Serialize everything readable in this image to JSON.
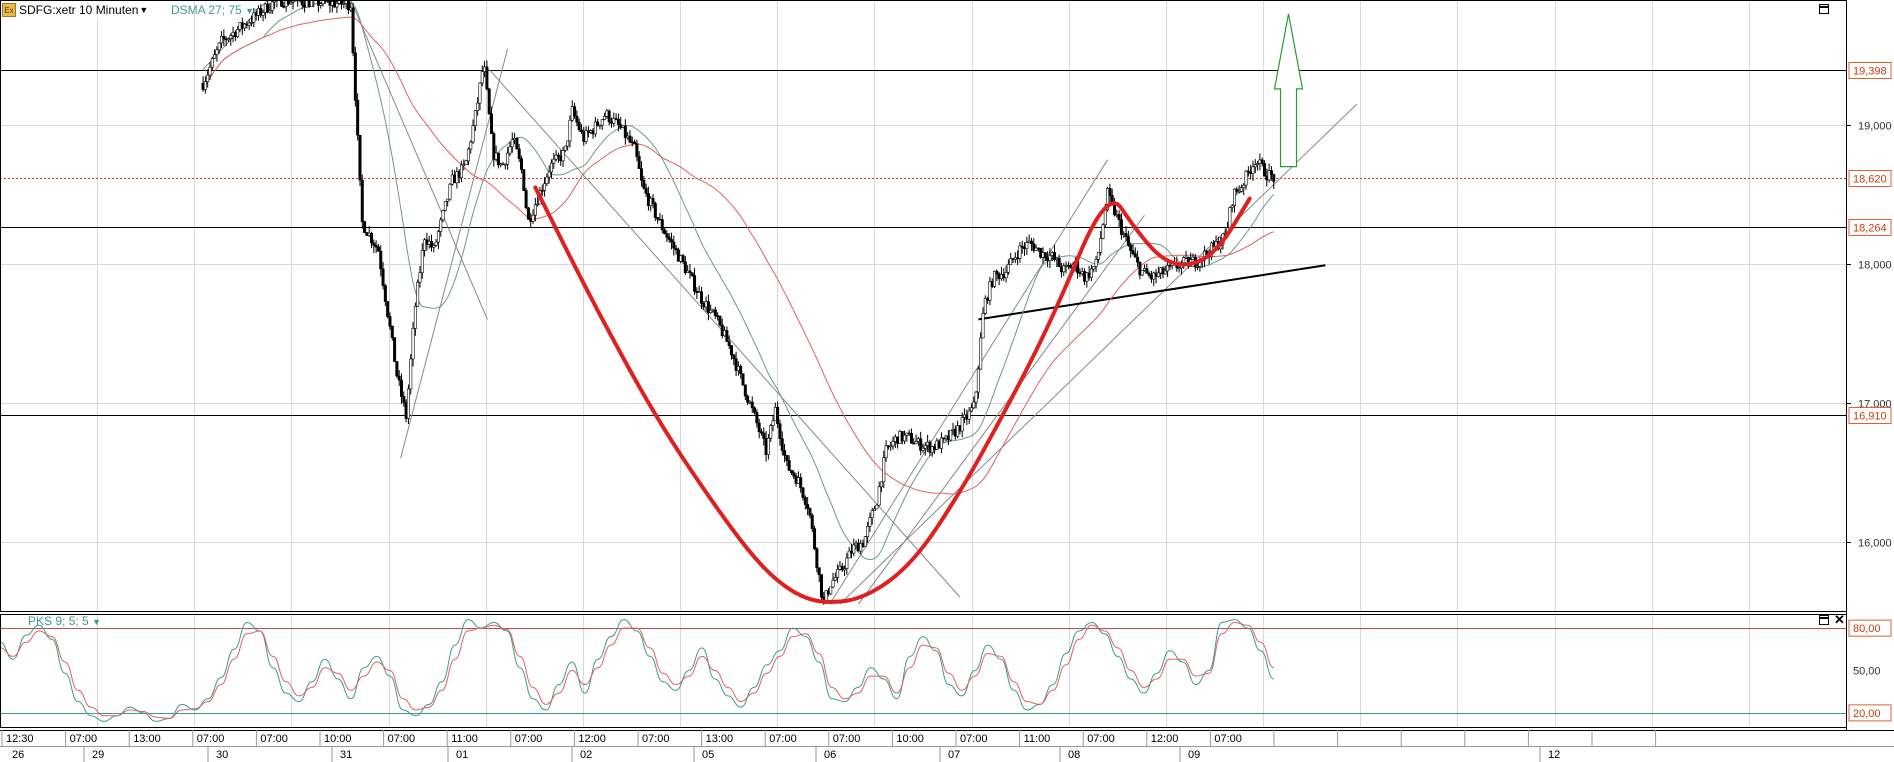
{
  "header": {
    "symbol": "SDFG:xetr 10 Minuten",
    "main_indicator": "DSMA 27; 75",
    "lower_indicator": "PKS 9; 5; 5"
  },
  "colors": {
    "candle": "#000000",
    "cup_handle": "#e02020",
    "ma_fast": "#6a9a8a",
    "ma_slow": "#e06060",
    "resistance_line": "#e03030",
    "arrow": "#2e9a2e",
    "grid": "#d8d8d8",
    "stoch_k": "#3c9c8c",
    "stoch_d": "#e06060"
  },
  "chart_data": [
    {
      "type": "candlestick",
      "title": "SDFG:xetr 10 Minuten",
      "indicator": "DSMA 27; 75",
      "ylim": [
        15500,
        19900
      ],
      "y_ticks": [
        16000,
        17000,
        18000,
        19000
      ],
      "y_tick_labels": [
        "16,000",
        "17,000",
        "18,000",
        "19,000"
      ],
      "highlighted_levels": [
        {
          "value": 19398,
          "label": "19,398",
          "style": "solid",
          "color": "#000000"
        },
        {
          "value": 18620,
          "label": "18,620",
          "style": "dotted",
          "color": "#e03030"
        },
        {
          "value": 18264,
          "label": "18,264",
          "style": "solid",
          "color": "#000000"
        },
        {
          "value": 16910,
          "label": "16,910",
          "style": "solid",
          "color": "#000000"
        }
      ],
      "x_time_labels": [
        "12:30",
        "07:00",
        "13:00",
        "07:00",
        "07:00",
        "10:00",
        "07:00",
        "11:00",
        "07:00",
        "12:00",
        "07:00",
        "13:00",
        "07:00",
        "07:00",
        "10:00",
        "07:00",
        "11:00",
        "07:00",
        "12:00",
        "07:00"
      ],
      "x_day_labels": [
        "26",
        "29",
        "30",
        "31",
        "01",
        "02",
        "05",
        "06",
        "07",
        "08",
        "09",
        "12"
      ],
      "price_path": [
        [
          0.11,
          19300
        ],
        [
          0.12,
          19600
        ],
        [
          0.15,
          19900
        ],
        [
          0.19,
          19870
        ],
        [
          0.196,
          18300
        ],
        [
          0.205,
          18100
        ],
        [
          0.215,
          17200
        ],
        [
          0.22,
          16900
        ],
        [
          0.225,
          17700
        ],
        [
          0.23,
          18200
        ],
        [
          0.235,
          18100
        ],
        [
          0.245,
          18600
        ],
        [
          0.252,
          18700
        ],
        [
          0.258,
          19100
        ],
        [
          0.262,
          19450
        ],
        [
          0.267,
          18800
        ],
        [
          0.272,
          18700
        ],
        [
          0.278,
          18900
        ],
        [
          0.283,
          18650
        ],
        [
          0.286,
          18300
        ],
        [
          0.292,
          18500
        ],
        [
          0.298,
          18700
        ],
        [
          0.306,
          18800
        ],
        [
          0.31,
          19100
        ],
        [
          0.316,
          18900
        ],
        [
          0.322,
          18980
        ],
        [
          0.328,
          19080
        ],
        [
          0.336,
          18980
        ],
        [
          0.344,
          18820
        ],
        [
          0.348,
          18550
        ],
        [
          0.358,
          18280
        ],
        [
          0.37,
          18000
        ],
        [
          0.38,
          17750
        ],
        [
          0.388,
          17600
        ],
        [
          0.396,
          17380
        ],
        [
          0.402,
          17150
        ],
        [
          0.41,
          16850
        ],
        [
          0.415,
          16650
        ],
        [
          0.42,
          16950
        ],
        [
          0.426,
          16550
        ],
        [
          0.432,
          16450
        ],
        [
          0.438,
          16250
        ],
        [
          0.442,
          15900
        ],
        [
          0.446,
          15550
        ],
        [
          0.45,
          15700
        ],
        [
          0.456,
          15800
        ],
        [
          0.462,
          15950
        ],
        [
          0.468,
          16000
        ],
        [
          0.475,
          16300
        ],
        [
          0.48,
          16650
        ],
        [
          0.486,
          16750
        ],
        [
          0.492,
          16750
        ],
        [
          0.498,
          16700
        ],
        [
          0.505,
          16680
        ],
        [
          0.512,
          16720
        ],
        [
          0.518,
          16800
        ],
        [
          0.524,
          16900
        ],
        [
          0.528,
          16980
        ],
        [
          0.533,
          17700
        ],
        [
          0.538,
          17900
        ],
        [
          0.545,
          17950
        ],
        [
          0.552,
          18100
        ],
        [
          0.558,
          18150
        ],
        [
          0.564,
          18080
        ],
        [
          0.57,
          18050
        ],
        [
          0.576,
          17950
        ],
        [
          0.582,
          18000
        ],
        [
          0.588,
          17900
        ],
        [
          0.594,
          18000
        ],
        [
          0.6,
          18500
        ],
        [
          0.606,
          18300
        ],
        [
          0.612,
          18100
        ],
        [
          0.618,
          17950
        ],
        [
          0.624,
          17900
        ],
        [
          0.632,
          17950
        ],
        [
          0.64,
          18000
        ],
        [
          0.648,
          18020
        ],
        [
          0.654,
          18080
        ],
        [
          0.66,
          18150
        ],
        [
          0.664,
          18200
        ],
        [
          0.668,
          18500
        ],
        [
          0.672,
          18550
        ],
        [
          0.676,
          18650
        ],
        [
          0.68,
          18750
        ],
        [
          0.686,
          18650
        ],
        [
          0.69,
          18620
        ]
      ],
      "cup_and_handle": [
        [
          0.29,
          18550
        ],
        [
          0.322,
          17700
        ],
        [
          0.355,
          16900
        ],
        [
          0.385,
          16300
        ],
        [
          0.41,
          15850
        ],
        [
          0.43,
          15620
        ],
        [
          0.448,
          15550
        ],
        [
          0.47,
          15600
        ],
        [
          0.495,
          15850
        ],
        [
          0.52,
          16350
        ],
        [
          0.545,
          16950
        ],
        [
          0.57,
          17600
        ],
        [
          0.6,
          18550
        ],
        [
          0.615,
          18250
        ],
        [
          0.63,
          18020
        ],
        [
          0.645,
          17980
        ],
        [
          0.66,
          18100
        ],
        [
          0.677,
          18470
        ]
      ],
      "trendlines": [
        {
          "points": [
            [
              0.11,
              19400
            ],
            [
              0.145,
              19900
            ]
          ],
          "color": "#888888"
        },
        {
          "points": [
            [
              0.19,
              19900
            ],
            [
              0.264,
              17600
            ]
          ],
          "color": "#888888"
        },
        {
          "points": [
            [
              0.217,
              16600
            ],
            [
              0.275,
              19550
            ]
          ],
          "color": "#888888"
        },
        {
          "points": [
            [
              0.265,
              19400
            ],
            [
              0.52,
              15600
            ]
          ],
          "color": "#888888"
        },
        {
          "points": [
            [
              0.45,
              15560
            ],
            [
              0.6,
              18750
            ]
          ],
          "color": "#888888"
        },
        {
          "points": [
            [
              0.455,
              15550
            ],
            [
              0.735,
              19150
            ]
          ],
          "color": "#888888"
        },
        {
          "points": [
            [
              0.465,
              15550
            ],
            [
              0.62,
              18350
            ]
          ],
          "color": "#888888"
        },
        {
          "points": [
            [
              0.53,
              17600
            ],
            [
              0.718,
              17990
            ]
          ],
          "color": "#000000"
        }
      ],
      "target_arrow": {
        "x": 0.698,
        "from": 18700,
        "to": 19800
      }
    },
    {
      "type": "line",
      "title": "PKS 9; 5; 5",
      "ylim": [
        10,
        90
      ],
      "y_ticks": [
        20,
        50,
        80
      ],
      "y_tick_labels": [
        "20,00",
        "50,00",
        "80,00"
      ],
      "series": [
        {
          "values": [
            70,
            58,
            75,
            82,
            72,
            48,
            28,
            18,
            14,
            18,
            24,
            20,
            14,
            16,
            26,
            22,
            30,
            45,
            65,
            84,
            78,
            52,
            34,
            28,
            42,
            58,
            44,
            30,
            52,
            60,
            46,
            22,
            18,
            26,
            42,
            68,
            86,
            80,
            84,
            78,
            52,
            30,
            22,
            40,
            56,
            34,
            58,
            74,
            86,
            78,
            60,
            42,
            36,
            50,
            66,
            44,
            32,
            24,
            38,
            54,
            64,
            80,
            74,
            56,
            30,
            28,
            38,
            52,
            44,
            30,
            60,
            74,
            64,
            40,
            32,
            50,
            68,
            58,
            36,
            22,
            26,
            40,
            62,
            78,
            84,
            76,
            60,
            44,
            34,
            48,
            64,
            56,
            40,
            50,
            84,
            86,
            80,
            64,
            44
          ]
        },
        {
          "values": [
            66,
            60,
            70,
            78,
            74,
            56,
            36,
            24,
            18,
            18,
            22,
            21,
            17,
            16,
            22,
            23,
            28,
            40,
            58,
            76,
            78,
            60,
            42,
            32,
            38,
            52,
            48,
            36,
            46,
            56,
            50,
            30,
            22,
            24,
            36,
            58,
            78,
            80,
            82,
            79,
            60,
            38,
            26,
            34,
            50,
            40,
            52,
            68,
            80,
            80,
            66,
            48,
            40,
            46,
            60,
            50,
            38,
            28,
            34,
            48,
            60,
            74,
            76,
            62,
            38,
            30,
            34,
            46,
            46,
            34,
            52,
            68,
            66,
            48,
            36,
            46,
            62,
            60,
            42,
            28,
            26,
            36,
            54,
            72,
            82,
            78,
            66,
            50,
            38,
            44,
            58,
            58,
            46,
            48,
            76,
            84,
            82,
            70,
            52
          ]
        }
      ]
    }
  ]
}
